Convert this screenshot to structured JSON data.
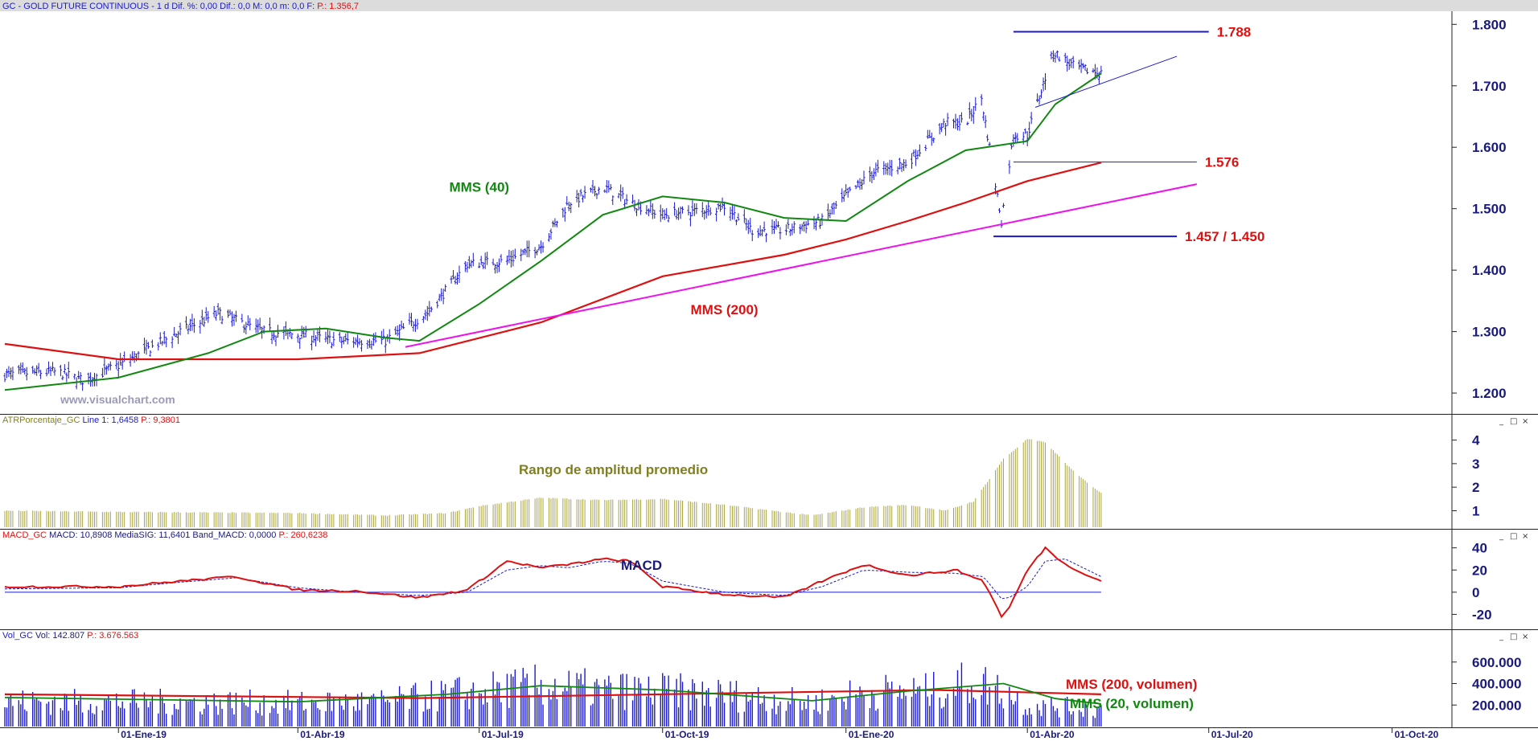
{
  "window": {
    "title_symbol": "GC - GOLD FUTURE CONTINUOUS",
    "title_info": "- 1 d Dif. %: 0,00 Dif.: 0,0 M: 0,0 m: 0,0 F:",
    "title_price": "P.: 1.356,7",
    "watermark": "www.visualchart.com"
  },
  "panel_headers": {
    "atr": {
      "name": "ATRPorcentaje_GC",
      "line": "Line 1: 1,6458",
      "p": "P.: 9,3801"
    },
    "macd": {
      "name": "MACD_GC",
      "values": "MACD: 10,8908 MediaSIG: 11,6401 Band_MACD: 0,0000",
      "p": "P.: 260,6238"
    },
    "vol": {
      "name": "Vol_GC",
      "values": "Vol: 142.807",
      "p": "P.: 3.676.563"
    }
  },
  "colors": {
    "price_bars": "#1a1acc",
    "sma40": "#118811",
    "sma200": "#dd1111",
    "trendline": "#ee11ee",
    "atr": "#a8a444",
    "macd": "#dd1111",
    "signal": "#1a1acc",
    "axis_text": "#1a1a7a",
    "annotation_red": "#dd1111",
    "annotation_green": "#118811",
    "annotation_olive": "#808020",
    "annotation_navy": "#1a1a7a"
  },
  "chart_data": [
    {
      "type": "candlestick",
      "title": "GC - GOLD FUTURE CONTINUOUS",
      "x_range": [
        "2018-11-05",
        "2020-10-31"
      ],
      "data_end": "2020-05-08",
      "ylim": [
        1170,
        1820
      ],
      "yticks": [
        1200,
        1300,
        1400,
        1500,
        1600,
        1700,
        1800
      ],
      "ytick_labels": [
        "1.200",
        "1.300",
        "1.400",
        "1.500",
        "1.600",
        "1.700",
        "1.800"
      ],
      "xticks": [
        "2019-01-01",
        "2019-04-01",
        "2019-07-01",
        "2019-10-01",
        "2020-01-01",
        "2020-04-01",
        "2020-07-01",
        "2020-10-01"
      ],
      "xtick_labels": [
        "01-Ene-19",
        "01-Abr-19",
        "01-Jul-19",
        "01-Oct-19",
        "01-Ene-20",
        "01-Abr-20",
        "01-Jul-20",
        "01-Oct-20"
      ],
      "close_path": [
        [
          "2018-11-05",
          1230
        ],
        [
          "2018-12-01",
          1235
        ],
        [
          "2018-12-15",
          1220
        ],
        [
          "2019-01-01",
          1245
        ],
        [
          "2019-02-01",
          1300
        ],
        [
          "2019-02-20",
          1330
        ],
        [
          "2019-03-15",
          1300
        ],
        [
          "2019-04-01",
          1295
        ],
        [
          "2019-04-20",
          1285
        ],
        [
          "2019-05-15",
          1285
        ],
        [
          "2019-06-05",
          1330
        ],
        [
          "2019-06-25",
          1410
        ],
        [
          "2019-07-15",
          1415
        ],
        [
          "2019-08-01",
          1440
        ],
        [
          "2019-08-15",
          1510
        ],
        [
          "2019-09-01",
          1535
        ],
        [
          "2019-09-15",
          1510
        ],
        [
          "2019-10-01",
          1490
        ],
        [
          "2019-10-15",
          1495
        ],
        [
          "2019-11-01",
          1505
        ],
        [
          "2019-11-15",
          1465
        ],
        [
          "2019-12-01",
          1465
        ],
        [
          "2019-12-20",
          1480
        ],
        [
          "2020-01-01",
          1520
        ],
        [
          "2020-01-15",
          1560
        ],
        [
          "2020-02-01",
          1575
        ],
        [
          "2020-02-20",
          1640
        ],
        [
          "2020-03-01",
          1640
        ],
        [
          "2020-03-09",
          1680
        ],
        [
          "2020-03-19",
          1480
        ],
        [
          "2020-03-25",
          1620
        ],
        [
          "2020-04-01",
          1620
        ],
        [
          "2020-04-14",
          1755
        ],
        [
          "2020-04-25",
          1730
        ],
        [
          "2020-05-08",
          1720
        ]
      ],
      "sma40": [
        [
          "2018-11-05",
          1205
        ],
        [
          "2019-01-01",
          1225
        ],
        [
          "2019-02-15",
          1265
        ],
        [
          "2019-03-15",
          1300
        ],
        [
          "2019-04-15",
          1305
        ],
        [
          "2019-05-15",
          1290
        ],
        [
          "2019-06-01",
          1285
        ],
        [
          "2019-07-01",
          1345
        ],
        [
          "2019-08-01",
          1415
        ],
        [
          "2019-09-01",
          1490
        ],
        [
          "2019-10-01",
          1520
        ],
        [
          "2019-11-01",
          1510
        ],
        [
          "2019-12-01",
          1485
        ],
        [
          "2020-01-01",
          1480
        ],
        [
          "2020-02-01",
          1545
        ],
        [
          "2020-03-01",
          1595
        ],
        [
          "2020-04-01",
          1610
        ],
        [
          "2020-04-15",
          1670
        ],
        [
          "2020-05-08",
          1720
        ]
      ],
      "sma200": [
        [
          "2018-11-05",
          1280
        ],
        [
          "2019-01-01",
          1255
        ],
        [
          "2019-04-01",
          1255
        ],
        [
          "2019-06-01",
          1265
        ],
        [
          "2019-08-01",
          1315
        ],
        [
          "2019-10-01",
          1390
        ],
        [
          "2019-12-01",
          1425
        ],
        [
          "2020-01-01",
          1450
        ],
        [
          "2020-02-01",
          1480
        ],
        [
          "2020-03-01",
          1510
        ],
        [
          "2020-04-01",
          1545
        ],
        [
          "2020-05-08",
          1575
        ]
      ],
      "levels": [
        {
          "label": "1.788",
          "value": 1788,
          "from": "2020-03-25",
          "to": "2020-07-01"
        },
        {
          "label": "1.576",
          "value": 1576,
          "from": "2020-03-25",
          "to": "2020-06-25"
        },
        {
          "label": "1.457 / 1.450",
          "value": 1455,
          "from": "2020-03-15",
          "to": "2020-06-15"
        }
      ],
      "trendlines": [
        {
          "kind": "support",
          "from": [
            "2019-05-25",
            1275
          ],
          "to": [
            "2020-06-25",
            1540
          ]
        },
        {
          "kind": "triangle-upper",
          "from": [
            "2020-04-05",
            1665
          ],
          "to": [
            "2020-06-15",
            1748
          ]
        }
      ],
      "annotations": [
        {
          "text": "MMS (40)",
          "color": "green",
          "at": [
            "2019-07-01",
            1528
          ]
        },
        {
          "text": "MMS (200)",
          "color": "red",
          "at": [
            "2019-11-01",
            1328
          ]
        }
      ]
    },
    {
      "type": "area",
      "title": "ATRPorcentaje_GC",
      "ylim": [
        0.3,
        4.6
      ],
      "yticks": [
        1,
        2,
        3,
        4
      ],
      "ytick_labels": [
        "1",
        "2",
        "3",
        "4"
      ],
      "values_path": [
        [
          "2018-11-05",
          1.0
        ],
        [
          "2019-01-01",
          0.95
        ],
        [
          "2019-04-01",
          0.9
        ],
        [
          "2019-05-15",
          0.8
        ],
        [
          "2019-06-15",
          0.9
        ],
        [
          "2019-07-01",
          1.2
        ],
        [
          "2019-08-01",
          1.55
        ],
        [
          "2019-09-01",
          1.45
        ],
        [
          "2019-10-01",
          1.5
        ],
        [
          "2019-11-01",
          1.25
        ],
        [
          "2019-12-15",
          0.8
        ],
        [
          "2020-01-10",
          1.15
        ],
        [
          "2020-02-01",
          1.25
        ],
        [
          "2020-02-20",
          1.0
        ],
        [
          "2020-03-05",
          1.4
        ],
        [
          "2020-03-20",
          3.2
        ],
        [
          "2020-04-01",
          4.05
        ],
        [
          "2020-04-10",
          3.9
        ],
        [
          "2020-04-25",
          2.6
        ],
        [
          "2020-05-08",
          1.75
        ]
      ],
      "annotation": "Rango de amplitud promedio"
    },
    {
      "type": "line",
      "title": "MACD_GC",
      "ylim": [
        -32,
        47
      ],
      "yticks": [
        -20,
        0,
        20,
        40
      ],
      "ytick_labels": [
        "-20",
        "0",
        "20",
        "40"
      ],
      "macd_path": [
        [
          "2018-11-05",
          5
        ],
        [
          "2019-01-01",
          5
        ],
        [
          "2019-02-01",
          10
        ],
        [
          "2019-03-01",
          14
        ],
        [
          "2019-04-01",
          2
        ],
        [
          "2019-05-01",
          1
        ],
        [
          "2019-06-01",
          -5
        ],
        [
          "2019-06-25",
          2
        ],
        [
          "2019-07-15",
          28
        ],
        [
          "2019-08-01",
          22
        ],
        [
          "2019-08-15",
          25
        ],
        [
          "2019-09-01",
          30
        ],
        [
          "2019-09-15",
          28
        ],
        [
          "2019-10-01",
          5
        ],
        [
          "2019-11-01",
          -2
        ],
        [
          "2019-12-01",
          -5
        ],
        [
          "2019-12-20",
          10
        ],
        [
          "2020-01-10",
          25
        ],
        [
          "2020-02-01",
          15
        ],
        [
          "2020-02-25",
          20
        ],
        [
          "2020-03-10",
          10
        ],
        [
          "2020-03-20",
          -25
        ],
        [
          "2020-04-01",
          20
        ],
        [
          "2020-04-10",
          40
        ],
        [
          "2020-04-20",
          25
        ],
        [
          "2020-05-08",
          10
        ]
      ],
      "signal_path": [
        [
          "2018-11-05",
          3
        ],
        [
          "2019-01-01",
          4
        ],
        [
          "2019-02-01",
          9
        ],
        [
          "2019-03-01",
          13
        ],
        [
          "2019-04-01",
          4
        ],
        [
          "2019-05-01",
          0
        ],
        [
          "2019-06-01",
          -3
        ],
        [
          "2019-06-25",
          0
        ],
        [
          "2019-07-15",
          20
        ],
        [
          "2019-08-01",
          24
        ],
        [
          "2019-08-15",
          22
        ],
        [
          "2019-09-01",
          28
        ],
        [
          "2019-09-15",
          26
        ],
        [
          "2019-10-01",
          10
        ],
        [
          "2019-11-01",
          0
        ],
        [
          "2019-12-01",
          -3
        ],
        [
          "2019-12-20",
          5
        ],
        [
          "2020-01-10",
          20
        ],
        [
          "2020-02-01",
          18
        ],
        [
          "2020-02-25",
          17
        ],
        [
          "2020-03-10",
          14
        ],
        [
          "2020-03-20",
          -8
        ],
        [
          "2020-04-01",
          5
        ],
        [
          "2020-04-10",
          28
        ],
        [
          "2020-04-20",
          30
        ],
        [
          "2020-05-08",
          14
        ]
      ],
      "annotation": "MACD"
    },
    {
      "type": "bar",
      "title": "Vol_GC",
      "ylim": [
        0,
        800000
      ],
      "yticks": [
        200000,
        400000,
        600000
      ],
      "ytick_labels": [
        "200.000",
        "400.000",
        "600.000"
      ],
      "volume_path": [
        [
          "2018-11-05",
          230000
        ],
        [
          "2019-01-01",
          230000
        ],
        [
          "2019-04-01",
          220000
        ],
        [
          "2019-05-15",
          230000
        ],
        [
          "2019-06-15",
          300000
        ],
        [
          "2019-08-01",
          380000
        ],
        [
          "2019-09-01",
          340000
        ],
        [
          "2019-10-01",
          330000
        ],
        [
          "2019-11-01",
          300000
        ],
        [
          "2019-12-15",
          220000
        ],
        [
          "2020-01-10",
          320000
        ],
        [
          "2020-02-15",
          330000
        ],
        [
          "2020-03-05",
          420000
        ],
        [
          "2020-03-20",
          330000
        ],
        [
          "2020-04-01",
          200000
        ],
        [
          "2020-05-08",
          160000
        ]
      ],
      "sma200_vol": [
        [
          "2018-11-05",
          300000
        ],
        [
          "2019-06-01",
          265000
        ],
        [
          "2020-02-15",
          340000
        ],
        [
          "2020-05-08",
          300000
        ]
      ],
      "sma20_vol": [
        [
          "2018-11-05",
          270000
        ],
        [
          "2019-04-01",
          230000
        ],
        [
          "2019-06-15",
          300000
        ],
        [
          "2019-08-01",
          380000
        ],
        [
          "2019-10-01",
          340000
        ],
        [
          "2019-12-15",
          240000
        ],
        [
          "2020-02-01",
          330000
        ],
        [
          "2020-03-20",
          400000
        ],
        [
          "2020-04-15",
          260000
        ],
        [
          "2020-05-08",
          210000
        ]
      ],
      "annotations": [
        {
          "text": "MMS (200, volumen)",
          "color": "red"
        },
        {
          "text": "MMS (20, volumen)",
          "color": "green"
        }
      ]
    }
  ]
}
